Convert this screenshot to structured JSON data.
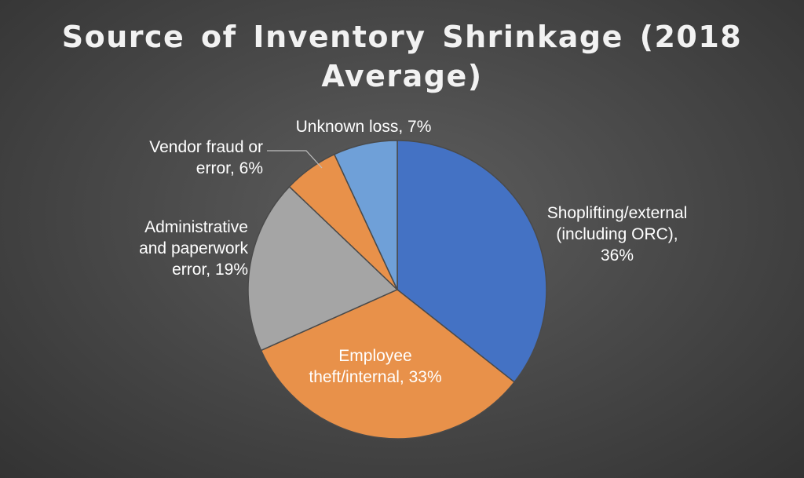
{
  "chart_data": {
    "type": "pie",
    "title_lines": [
      "Source of Inventory Shrinkage (2018",
      "Average)"
    ],
    "slices": [
      {
        "label_lines": [
          "Shoplifting/external",
          "(including ORC),",
          "36%"
        ],
        "value": 36,
        "color": "#4472c4",
        "label_color": "#ffffff"
      },
      {
        "label_lines": [
          "Employee",
          "theft/internal, 33%"
        ],
        "value": 33,
        "color": "#e8914a",
        "label_color": "#ffffff"
      },
      {
        "label_lines": [
          "Administrative",
          "and paperwork",
          "error, 19%"
        ],
        "value": 19,
        "color": "#a5a5a5",
        "label_color": "#ffffff"
      },
      {
        "label_lines": [
          "Vendor fraud or",
          "error, 6%"
        ],
        "value": 6,
        "color": "#e8914a",
        "label_color": "#ffffff"
      },
      {
        "label_lines": [
          "Unknown loss, 7%"
        ],
        "value": 7,
        "color": "#6fa0d8",
        "label_color": "#ffffff"
      }
    ],
    "legend": "none"
  }
}
